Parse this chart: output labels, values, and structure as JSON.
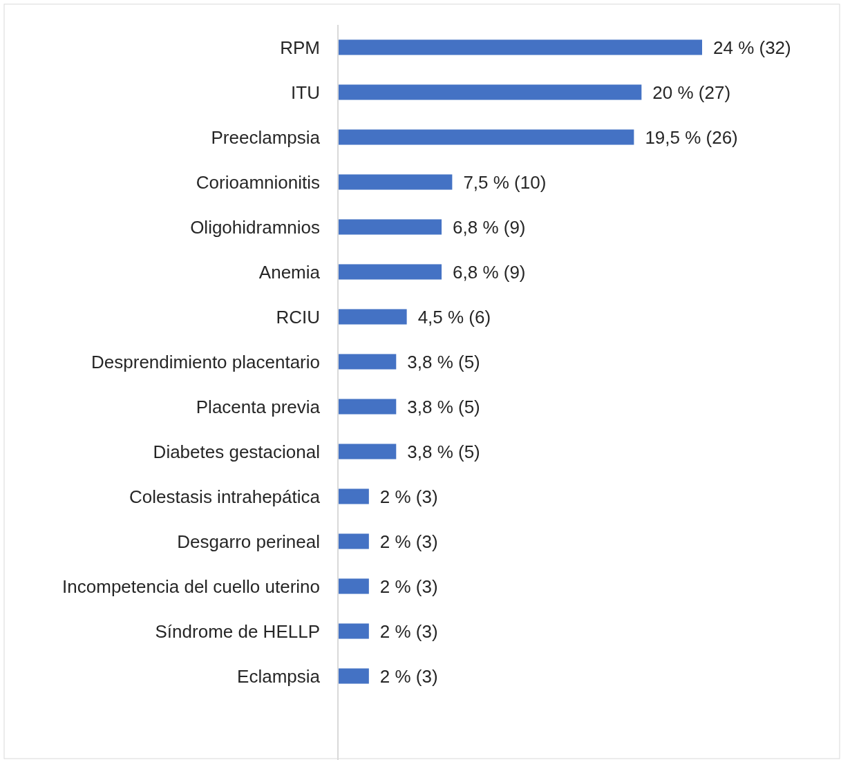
{
  "chart_data": {
    "type": "bar",
    "orientation": "horizontal",
    "color": "#4472c4",
    "categories": [
      "RPM",
      "ITU",
      "Preeclampsia",
      "Corioamnionitis",
      "Oligohidramnios",
      "Anemia",
      "RCIU",
      "Desprendimiento placentario",
      "Placenta previa",
      "Diabetes gestacional",
      "Colestasis intrahepática",
      "Desgarro perineal",
      "Incompetencia del cuello uterino",
      "Síndrome de HELLP",
      "Eclampsia"
    ],
    "values": [
      24,
      20,
      19.5,
      7.5,
      6.8,
      6.8,
      4.5,
      3.8,
      3.8,
      3.8,
      2,
      2,
      2,
      2,
      2
    ],
    "value_labels": [
      "24 % (32)",
      "20 % (27)",
      "19,5 % (26)",
      "7,5 % (10)",
      "6,8 % (9)",
      "6,8 % (9)",
      "4,5 % (6)",
      "3,8 % (5)",
      "3,8 % (5)",
      "3,8 % (5)",
      "2 % (3)",
      "2 % (3)",
      "2 % (3)",
      "2 % (3)",
      "2 % (3)"
    ]
  }
}
